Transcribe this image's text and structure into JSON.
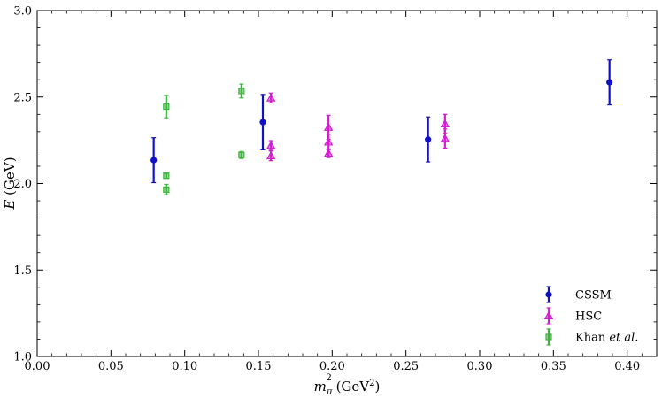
{
  "chart_data": {
    "type": "scatter",
    "xlabel": {
      "main": "m",
      "sub": "π",
      "sup": "2",
      "unit_open": " (GeV",
      "unit_sup": "2",
      "unit_close": ")"
    },
    "ylabel": {
      "main": "E",
      "unit": " (GeV)"
    },
    "xlim": [
      0.0,
      0.42
    ],
    "ylim": [
      1.0,
      3.0
    ],
    "xticks": [
      {
        "value": 0.0,
        "label": "0.00"
      },
      {
        "value": 0.05,
        "label": "0.05"
      },
      {
        "value": 0.1,
        "label": "0.10"
      },
      {
        "value": 0.15,
        "label": "0.15"
      },
      {
        "value": 0.2,
        "label": "0.20"
      },
      {
        "value": 0.25,
        "label": "0.25"
      },
      {
        "value": 0.3,
        "label": "0.30"
      },
      {
        "value": 0.35,
        "label": "0.35"
      },
      {
        "value": 0.4,
        "label": "0.40"
      }
    ],
    "yticks": [
      {
        "value": 1.0,
        "label": "1.0"
      },
      {
        "value": 1.5,
        "label": "1.5"
      },
      {
        "value": 2.0,
        "label": "2.0"
      },
      {
        "value": 2.5,
        "label": "2.5"
      },
      {
        "value": 3.0,
        "label": "3.0"
      }
    ],
    "grid": false,
    "legend_position": "bottom-right",
    "series": [
      {
        "name": "CSSM",
        "legend_parts": [
          {
            "text": "CSSM",
            "italic": false
          }
        ],
        "marker": "circle",
        "color": "#1010c8",
        "points": [
          {
            "x": 0.079,
            "y": 2.135,
            "err": 0.13
          },
          {
            "x": 0.153,
            "y": 2.355,
            "err": 0.16
          },
          {
            "x": 0.265,
            "y": 2.255,
            "err": 0.13
          },
          {
            "x": 0.388,
            "y": 2.585,
            "err": 0.13
          }
        ]
      },
      {
        "name": "HSC",
        "legend_parts": [
          {
            "text": "HSC",
            "italic": false
          }
        ],
        "marker": "triangle",
        "color": "#d41cd4",
        "points": [
          {
            "x": 0.1585,
            "y": 2.495,
            "err": 0.028
          },
          {
            "x": 0.1585,
            "y": 2.22,
            "err": 0.028
          },
          {
            "x": 0.1585,
            "y": 2.16,
            "err": 0.028
          },
          {
            "x": 0.1975,
            "y": 2.325,
            "err": 0.07
          },
          {
            "x": 0.1975,
            "y": 2.24,
            "err": 0.045
          },
          {
            "x": 0.1975,
            "y": 2.175,
            "err": 0.025
          },
          {
            "x": 0.2765,
            "y": 2.345,
            "err": 0.055
          },
          {
            "x": 0.2765,
            "y": 2.26,
            "err": 0.055
          }
        ]
      },
      {
        "name": "Khan et al.",
        "legend_parts": [
          {
            "text": "Khan ",
            "italic": false
          },
          {
            "text": "et al.",
            "italic": true
          }
        ],
        "marker": "square",
        "color": "#3cb43c",
        "points": [
          {
            "x": 0.0875,
            "y": 2.445,
            "err": 0.065
          },
          {
            "x": 0.0875,
            "y": 2.045,
            "err": 0.015
          },
          {
            "x": 0.0875,
            "y": 1.965,
            "err": 0.03
          },
          {
            "x": 0.1385,
            "y": 2.535,
            "err": 0.04
          },
          {
            "x": 0.1385,
            "y": 2.165,
            "err": 0.02
          }
        ]
      }
    ]
  }
}
